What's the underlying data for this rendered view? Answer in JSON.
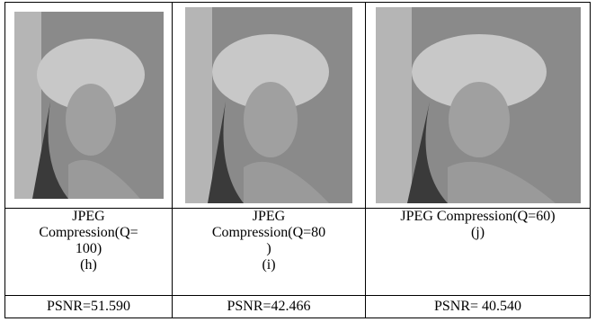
{
  "table": {
    "columns": [
      {
        "caption_lines": [
          "JPEG",
          "Compression(Q=",
          "100)"
        ],
        "label": "(h)",
        "psnr": "PSNR=51.590"
      },
      {
        "caption_lines": [
          "JPEG",
          "Compression(Q=80",
          ")"
        ],
        "label": "(i)",
        "psnr": "PSNR=42.466"
      },
      {
        "caption_lines": [
          "JPEG Compression(Q=60)"
        ],
        "label": "(j)",
        "psnr": "PSNR= 40.540"
      }
    ]
  }
}
